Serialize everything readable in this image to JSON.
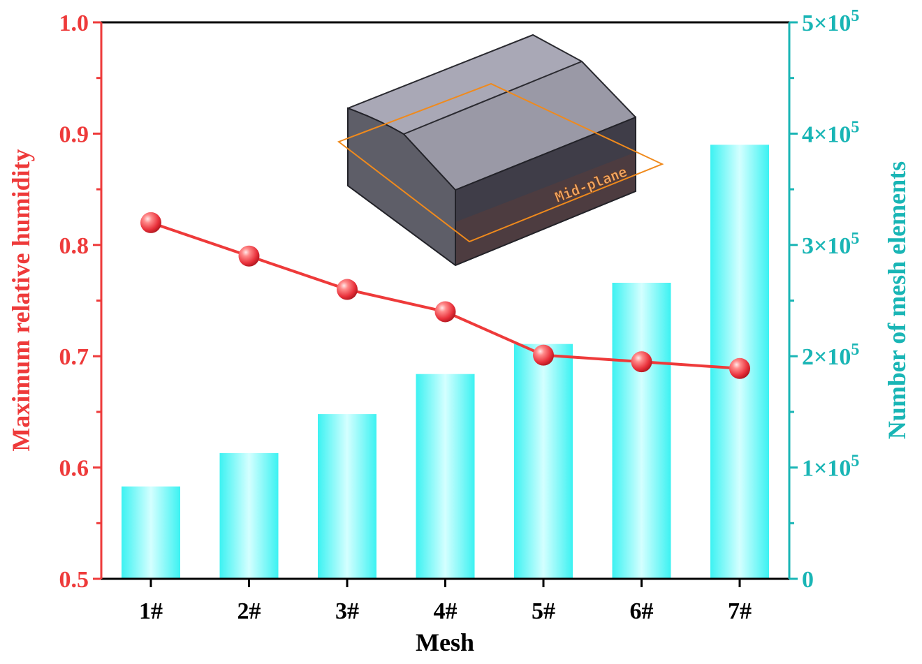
{
  "chart_data": {
    "type": "bar",
    "categories": [
      "1#",
      "2#",
      "3#",
      "4#",
      "5#",
      "6#",
      "7#"
    ],
    "xlabel": "Mesh",
    "y_left": {
      "label": "Maximum relative humidity",
      "range": [
        0.5,
        1.0
      ],
      "ticks": [
        "0.5",
        "0.6",
        "0.7",
        "0.8",
        "0.9",
        "1.0"
      ],
      "color": "#ee3a3a"
    },
    "y_right": {
      "label": "Number of mesh elements",
      "range": [
        0,
        500000
      ],
      "ticks": [
        {
          "value": 0,
          "base": "0",
          "exp": ""
        },
        {
          "value": 100000,
          "base": "1×10",
          "exp": "5"
        },
        {
          "value": 200000,
          "base": "2×10",
          "exp": "5"
        },
        {
          "value": 300000,
          "base": "3×10",
          "exp": "5"
        },
        {
          "value": 400000,
          "base": "4×10",
          "exp": "5"
        },
        {
          "value": 500000,
          "base": "5×10",
          "exp": "5"
        }
      ],
      "color": "#19b5b5"
    },
    "series": [
      {
        "type": "bar",
        "axis": "right",
        "color": "#19f5f5",
        "values": [
          83000,
          113000,
          148000,
          184000,
          211000,
          266000,
          390000
        ]
      },
      {
        "type": "line",
        "axis": "left",
        "color": "#ee3a3a",
        "values": [
          0.82,
          0.79,
          0.76,
          0.74,
          0.701,
          0.695,
          0.689
        ]
      }
    ],
    "inset": {
      "label": "Mid-plane"
    }
  }
}
